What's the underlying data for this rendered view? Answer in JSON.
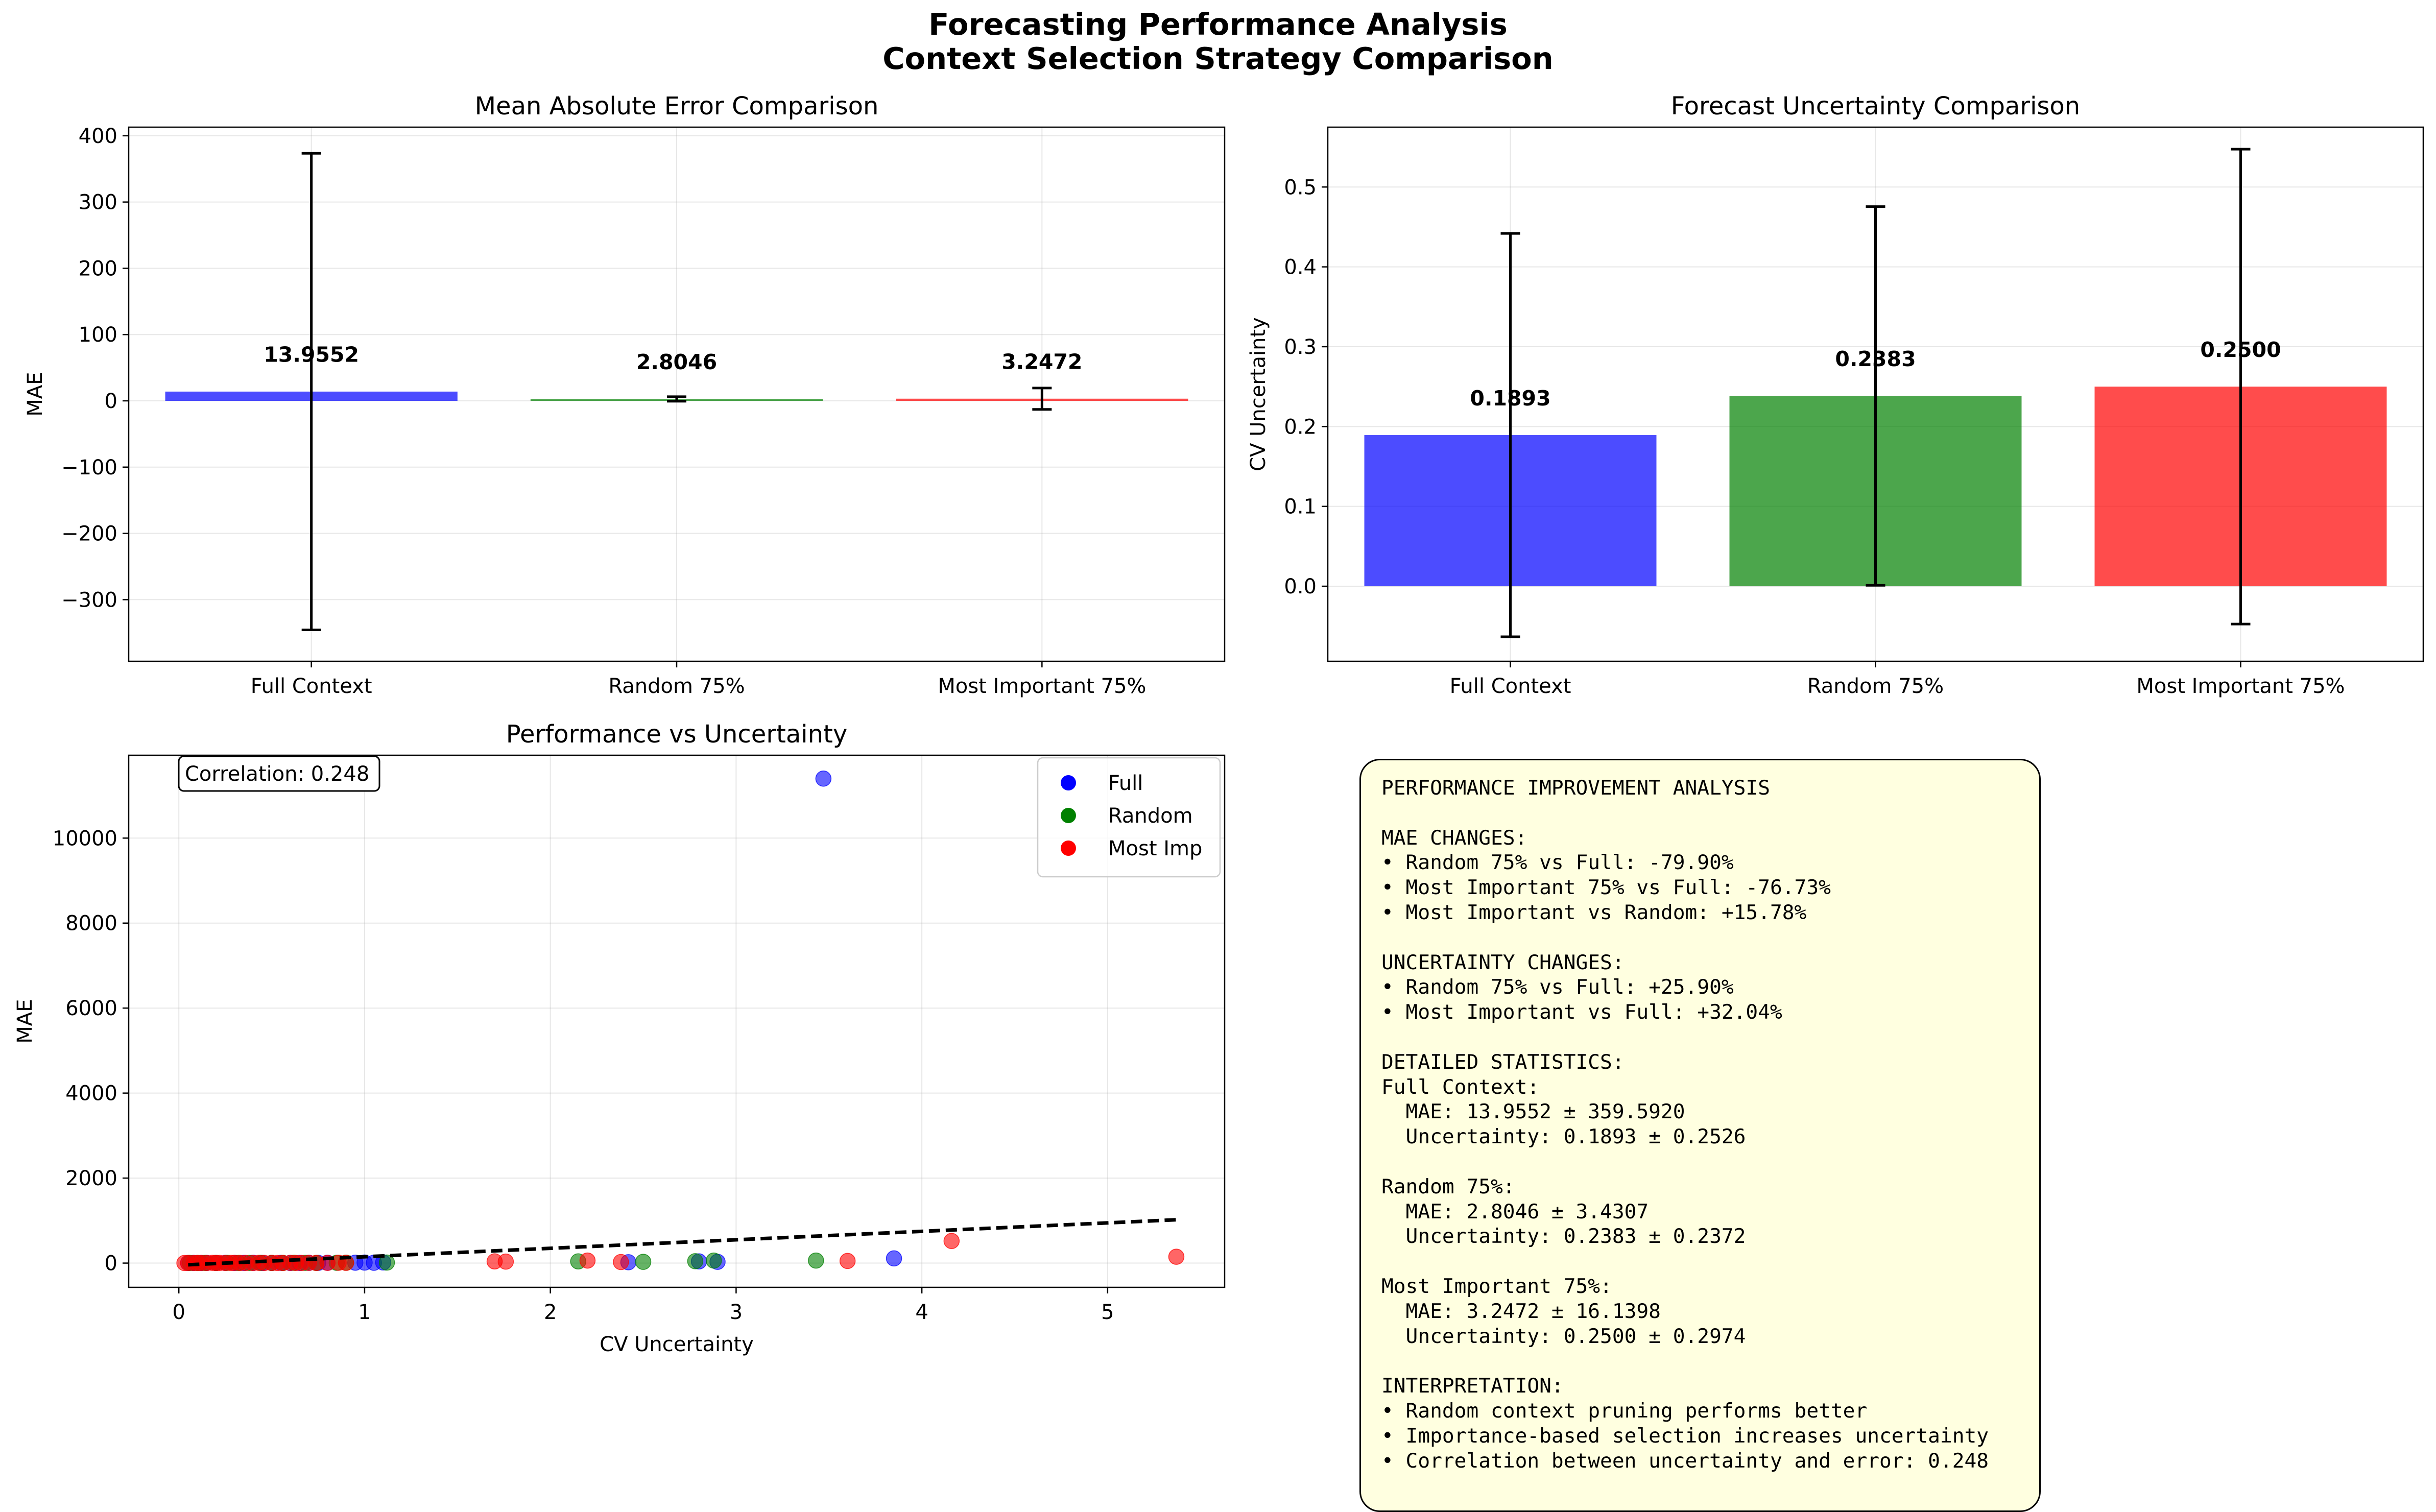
{
  "figure": {
    "title_line1": "Forecasting Performance Analysis",
    "title_line2": "Context Selection Strategy Comparison"
  },
  "colors": {
    "full": "#0000ff",
    "random": "#008000",
    "most_imp": "#ff0000",
    "trend": "#000000",
    "stats_bg": "#ffffe0"
  },
  "chart_data": [
    {
      "type": "bar",
      "title": "Mean Absolute Error Comparison",
      "xlabel": "",
      "ylabel": "MAE",
      "categories": [
        "Full Context",
        "Random 75%",
        "Most Important 75%"
      ],
      "values": [
        13.9552,
        2.8046,
        3.2472
      ],
      "value_labels": [
        "13.9552",
        "2.8046",
        "3.2472"
      ],
      "errors": [
        359.592,
        3.4307,
        16.1398
      ],
      "colors": [
        "#0000ff",
        "#008000",
        "#ff0000"
      ],
      "ylim": [
        -393,
        413
      ],
      "yticks": [
        -300,
        -200,
        -100,
        0,
        100,
        200,
        300,
        400
      ],
      "ytick_labels": [
        "−300",
        "−200",
        "−100",
        "0",
        "100",
        "200",
        "300",
        "400"
      ],
      "grid": true
    },
    {
      "type": "bar",
      "title": "Forecast Uncertainty Comparison",
      "xlabel": "",
      "ylabel": "CV Uncertainty",
      "categories": [
        "Full Context",
        "Random 75%",
        "Most Important 75%"
      ],
      "values": [
        0.1893,
        0.2383,
        0.25
      ],
      "value_labels": [
        "0.1893",
        "0.2383",
        "0.2500"
      ],
      "errors": [
        0.2526,
        0.2372,
        0.2974
      ],
      "colors": [
        "#0000ff",
        "#008000",
        "#ff0000"
      ],
      "ylim": [
        -0.094,
        0.575
      ],
      "yticks": [
        0.0,
        0.1,
        0.2,
        0.3,
        0.4,
        0.5
      ],
      "ytick_labels": [
        "0.0",
        "0.1",
        "0.2",
        "0.3",
        "0.4",
        "0.5"
      ],
      "grid": true
    },
    {
      "type": "scatter",
      "title": "Performance vs Uncertainty",
      "xlabel": "CV Uncertainty",
      "ylabel": "MAE",
      "xlim": [
        -0.27,
        5.63
      ],
      "ylim": [
        -570,
        11950
      ],
      "xticks": [
        0,
        1,
        2,
        3,
        4,
        5
      ],
      "xtick_labels": [
        "0",
        "1",
        "2",
        "3",
        "4",
        "5"
      ],
      "yticks": [
        0,
        2000,
        4000,
        6000,
        8000,
        10000
      ],
      "ytick_labels": [
        "0",
        "2000",
        "4000",
        "6000",
        "8000",
        "10000"
      ],
      "grid": true,
      "legend_position": "top-right",
      "annotation": "Correlation: 0.248",
      "series": [
        {
          "name": "Full",
          "color": "#0000ff",
          "points": [
            [
              0.05,
              2
            ],
            [
              0.08,
              3
            ],
            [
              0.12,
              2
            ],
            [
              0.15,
              4
            ],
            [
              0.2,
              3
            ],
            [
              0.25,
              5
            ],
            [
              0.3,
              3
            ],
            [
              0.35,
              4
            ],
            [
              0.4,
              6
            ],
            [
              0.45,
              3
            ],
            [
              0.5,
              4
            ],
            [
              0.55,
              5
            ],
            [
              0.6,
              3
            ],
            [
              0.65,
              4
            ],
            [
              0.7,
              6
            ],
            [
              0.75,
              5
            ],
            [
              0.8,
              8
            ],
            [
              0.95,
              10
            ],
            [
              1.0,
              12
            ],
            [
              1.05,
              8
            ],
            [
              1.1,
              15
            ],
            [
              2.42,
              20
            ],
            [
              2.8,
              40
            ],
            [
              2.9,
              30
            ],
            [
              3.47,
              11400
            ],
            [
              3.85,
              110
            ]
          ]
        },
        {
          "name": "Random",
          "color": "#008000",
          "points": [
            [
              0.06,
              3
            ],
            [
              0.1,
              2
            ],
            [
              0.14,
              4
            ],
            [
              0.2,
              3
            ],
            [
              0.26,
              5
            ],
            [
              0.32,
              3
            ],
            [
              0.38,
              4
            ],
            [
              0.44,
              5
            ],
            [
              0.5,
              3
            ],
            [
              0.56,
              4
            ],
            [
              0.62,
              6
            ],
            [
              0.68,
              5
            ],
            [
              0.74,
              4
            ],
            [
              0.85,
              7
            ],
            [
              0.9,
              10
            ],
            [
              1.12,
              12
            ],
            [
              2.15,
              40
            ],
            [
              2.5,
              30
            ],
            [
              2.78,
              45
            ],
            [
              2.88,
              60
            ],
            [
              3.43,
              60
            ]
          ]
        },
        {
          "name": "Most Imp",
          "color": "#ff0000",
          "points": [
            [
              0.03,
              2
            ],
            [
              0.05,
              3
            ],
            [
              0.08,
              2
            ],
            [
              0.1,
              4
            ],
            [
              0.12,
              3
            ],
            [
              0.15,
              2
            ],
            [
              0.18,
              5
            ],
            [
              0.2,
              3
            ],
            [
              0.22,
              4
            ],
            [
              0.25,
              2
            ],
            [
              0.28,
              3
            ],
            [
              0.3,
              5
            ],
            [
              0.33,
              3
            ],
            [
              0.36,
              4
            ],
            [
              0.4,
              2
            ],
            [
              0.43,
              5
            ],
            [
              0.46,
              3
            ],
            [
              0.5,
              4
            ],
            [
              0.53,
              2
            ],
            [
              0.56,
              3
            ],
            [
              0.6,
              5
            ],
            [
              0.63,
              4
            ],
            [
              0.66,
              3
            ],
            [
              0.7,
              6
            ],
            [
              0.74,
              4
            ],
            [
              0.8,
              5
            ],
            [
              0.86,
              8
            ],
            [
              0.9,
              6
            ],
            [
              1.7,
              40
            ],
            [
              1.76,
              35
            ],
            [
              2.2,
              60
            ],
            [
              2.38,
              25
            ],
            [
              3.6,
              50
            ],
            [
              4.16,
              520
            ],
            [
              5.37,
              150
            ]
          ]
        }
      ],
      "trend_line": {
        "x": [
          0.05,
          5.37
        ],
        "y": [
          -40,
          1020
        ]
      }
    }
  ],
  "stats_panel": {
    "lines": [
      "PERFORMANCE IMPROVEMENT ANALYSIS",
      "",
      "MAE CHANGES:",
      "• Random 75% vs Full: -79.90%",
      "• Most Important 75% vs Full: -76.73%",
      "• Most Important vs Random: +15.78%",
      "",
      "UNCERTAINTY CHANGES:",
      "• Random 75% vs Full: +25.90%",
      "• Most Important vs Full: +32.04%",
      "",
      "DETAILED STATISTICS:",
      "Full Context:",
      "  MAE: 13.9552 ± 359.5920",
      "  Uncertainty: 0.1893 ± 0.2526",
      "",
      "Random 75%:",
      "  MAE: 2.8046 ± 3.4307",
      "  Uncertainty: 0.2383 ± 0.2372",
      "",
      "Most Important 75%:",
      "  MAE: 3.2472 ± 16.1398",
      "  Uncertainty: 0.2500 ± 0.2974",
      "",
      "INTERPRETATION:",
      "• Random context pruning performs better",
      "• Importance-based selection increases uncertainty",
      "• Correlation between uncertainty and error: 0.248"
    ]
  }
}
